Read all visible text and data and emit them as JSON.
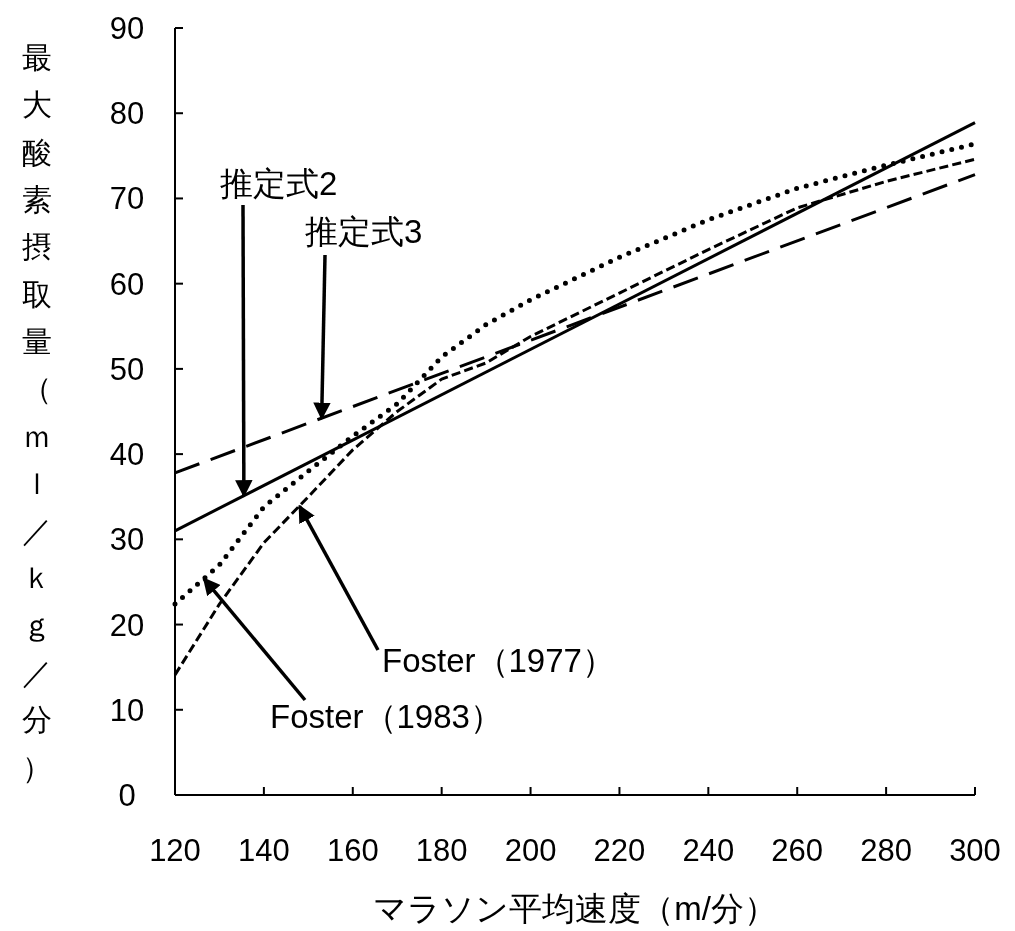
{
  "chart_data": {
    "type": "line",
    "xlabel": "マラソン平均速度（m/分）",
    "ylabel": "最大酸素摂取量（ｍｌ／ｋｇ／分）",
    "xlim": [
      120,
      300
    ],
    "xticks": [
      120,
      140,
      160,
      180,
      200,
      220,
      240,
      260,
      280,
      300
    ],
    "ylim": [
      0,
      90
    ],
    "yticks": [
      0,
      10,
      20,
      30,
      40,
      50,
      60,
      70,
      80,
      90
    ],
    "grid": false,
    "marker": "none",
    "annotations": [
      {
        "text": "推定式2",
        "x": 135.5,
        "y": 35.1
      },
      {
        "text": "推定式3",
        "x": 153,
        "y": 44.2
      },
      {
        "text": "Foster（1977）",
        "x": 148,
        "y": 33.9
      },
      {
        "text": "Foster（1983）",
        "x": 126.5,
        "y": 25.4
      }
    ],
    "series": [
      {
        "color": "#000000",
        "line_style": "solid",
        "x": [
          120,
          300
        ],
        "values": [
          31,
          78.9
        ]
      },
      {
        "color": "#000000",
        "line_style": "dashed",
        "x": [
          120,
          300
        ],
        "values": [
          37.8,
          72.8
        ]
      },
      {
        "color": "#000000",
        "line_style": "dotted",
        "x": [
          120,
          130,
          140,
          150,
          160,
          170,
          180,
          190,
          200,
          220,
          240,
          260,
          280,
          300
        ],
        "values": [
          22.4,
          27,
          33.8,
          38,
          42.1,
          45.9,
          51.4,
          55.2,
          58.1,
          63.1,
          67.5,
          71.2,
          73.9,
          76.4
        ]
      },
      {
        "color": "#000000",
        "line_style": "dashed",
        "x": [
          120,
          130,
          140,
          150,
          160,
          170,
          180,
          190,
          200,
          220,
          240,
          260,
          280,
          300
        ],
        "values": [
          14.1,
          22.4,
          29.6,
          35,
          40.5,
          45,
          48.8,
          50.7,
          53.8,
          58.9,
          64,
          68.9,
          72,
          74.6
        ]
      }
    ]
  }
}
